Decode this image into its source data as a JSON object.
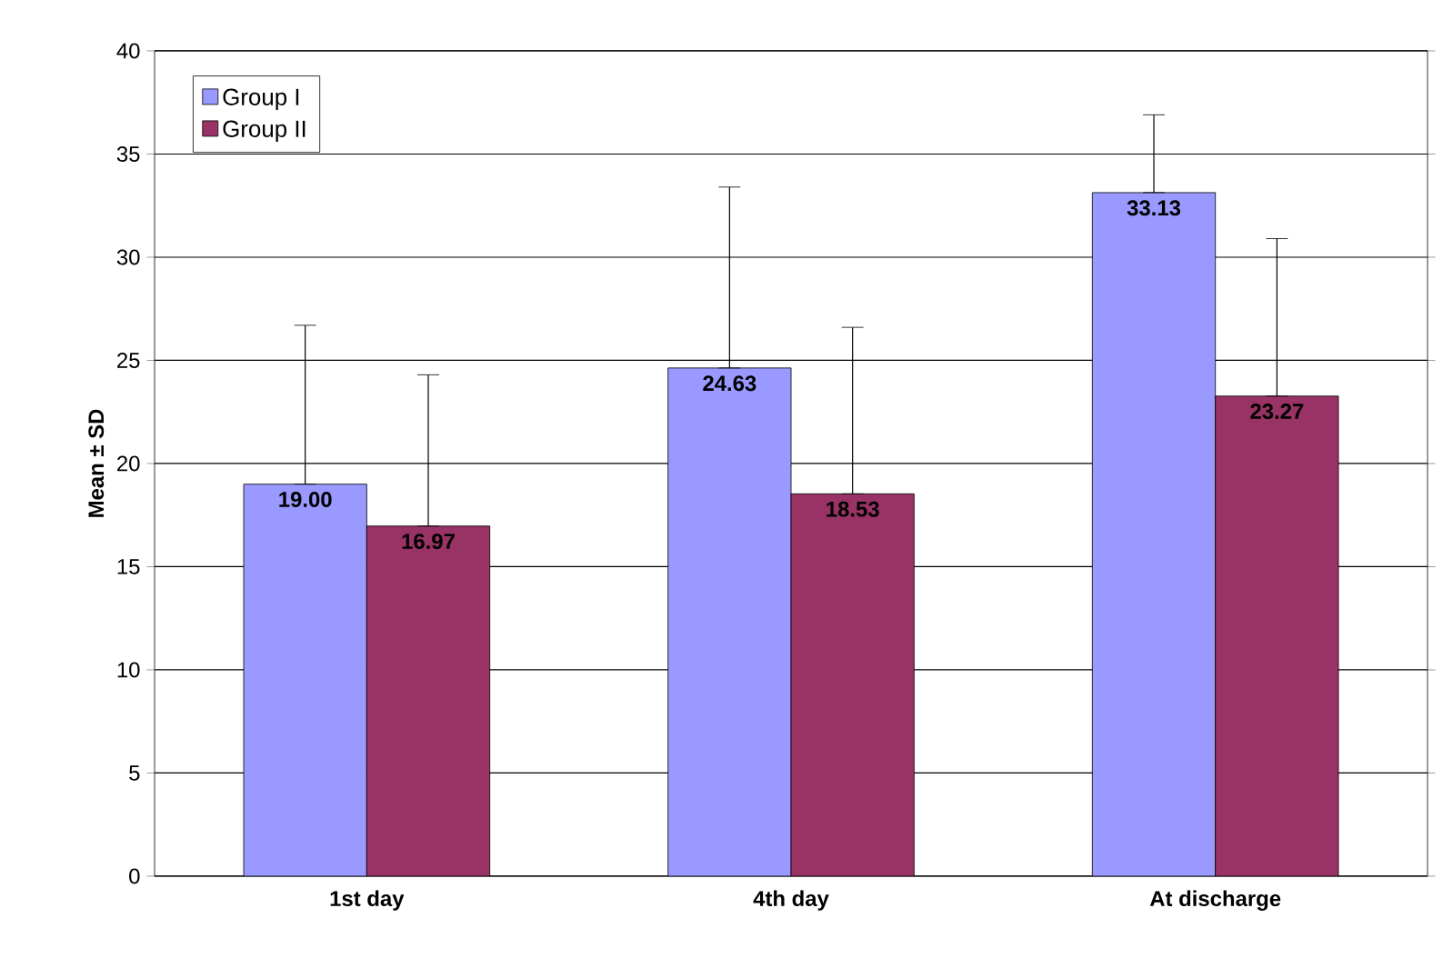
{
  "chart_data": {
    "type": "bar",
    "ylabel": "Mean ± SD",
    "categories": [
      "1st day",
      "4th day",
      "At discharge"
    ],
    "series": [
      {
        "name": "Group I",
        "color": "#9999ff",
        "values": [
          19.0,
          24.63,
          33.13
        ],
        "value_labels": [
          "19.00",
          "24.63",
          "33.13"
        ],
        "errors": [
          [
            19.0,
            26.7
          ],
          [
            24.63,
            33.4
          ],
          [
            33.13,
            36.9
          ]
        ]
      },
      {
        "name": "Group II",
        "color": "#993366",
        "values": [
          16.97,
          18.53,
          23.27
        ],
        "value_labels": [
          "16.97",
          "18.53",
          "23.27"
        ],
        "errors": [
          [
            16.97,
            24.3
          ],
          [
            18.53,
            26.6
          ],
          [
            23.27,
            30.9
          ]
        ]
      }
    ],
    "ylim": [
      0,
      40
    ],
    "yticks": [
      0,
      5,
      10,
      15,
      20,
      25,
      30,
      35,
      40
    ],
    "grid": "y",
    "legend": "top left"
  }
}
